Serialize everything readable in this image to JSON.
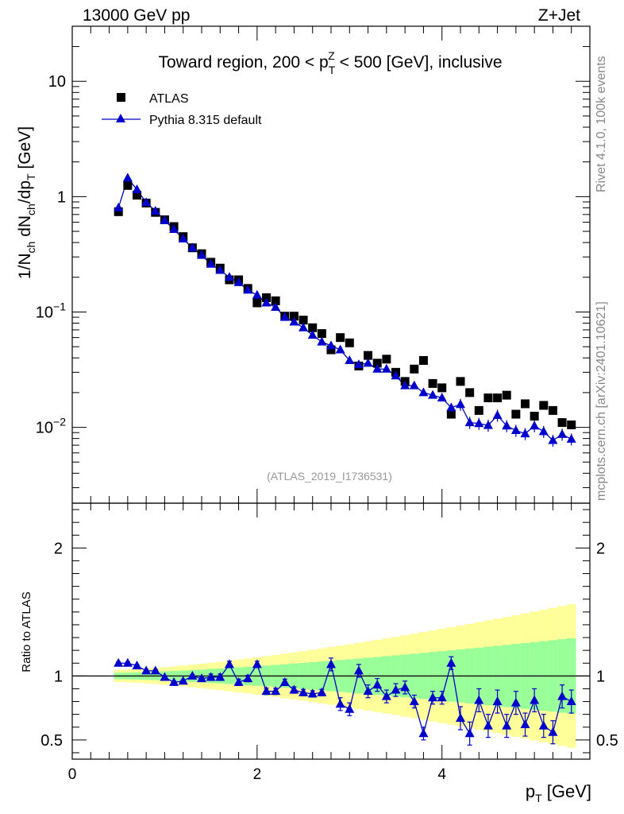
{
  "header": {
    "left": "13000 GeV pp",
    "right": "Z+Jet"
  },
  "side_labels": {
    "rivet": "Rivet 4.1.0,  100k events",
    "mcplots": "mcplots.cern.ch [arXiv:2401.10621]"
  },
  "colors": {
    "atlas": "#000000",
    "pythia": "#0000cc",
    "band_inner": "#99ff99",
    "band_outer": "#ffff99"
  },
  "chart_data": [
    {
      "type": "scatter",
      "title": "Toward region, 200 < p_T^Z < 500 [GeV], inclusive",
      "title_parts": {
        "before": "Toward region, 200 < p",
        "sub": "T",
        "sup": "Z",
        "after": " < 500 [GeV], inclusive"
      },
      "ylabel": "1/N_ch dN_ch/dp_T [GeV]",
      "yscale": "log",
      "ylim": [
        0.0022,
        30
      ],
      "xlim": [
        0,
        5.6
      ],
      "y_ticks": [
        {
          "value": 0.01,
          "label": "10^-2"
        },
        {
          "value": 0.1,
          "label": "10^-1"
        },
        {
          "value": 1,
          "label": "1"
        },
        {
          "value": 10,
          "label": "10"
        }
      ],
      "watermark": "(ATLAS_2019_I1736531)",
      "legend": [
        {
          "name": "ATLAS",
          "marker": "square"
        },
        {
          "name": "Pythia 8.315 default",
          "marker": "triangle"
        }
      ],
      "x": [
        0.5,
        0.6,
        0.7,
        0.8,
        0.9,
        1.0,
        1.1,
        1.2,
        1.3,
        1.4,
        1.5,
        1.6,
        1.7,
        1.8,
        1.9,
        2.0,
        2.1,
        2.2,
        2.3,
        2.4,
        2.5,
        2.6,
        2.7,
        2.8,
        2.9,
        3.0,
        3.1,
        3.2,
        3.3,
        3.4,
        3.5,
        3.6,
        3.7,
        3.8,
        3.9,
        4.0,
        4.1,
        4.2,
        4.3,
        4.4,
        4.5,
        4.6,
        4.7,
        4.8,
        4.9,
        5.0,
        5.1,
        5.2,
        5.3,
        5.4
      ],
      "series": [
        {
          "name": "ATLAS",
          "values": [
            0.74,
            1.25,
            1.03,
            0.88,
            0.73,
            0.63,
            0.55,
            0.45,
            0.36,
            0.32,
            0.27,
            0.24,
            0.19,
            0.19,
            0.16,
            0.12,
            0.133,
            0.125,
            0.092,
            0.092,
            0.085,
            0.073,
            0.065,
            0.047,
            0.06,
            0.054,
            0.034,
            0.042,
            0.036,
            0.039,
            0.03,
            0.025,
            0.032,
            0.038,
            0.024,
            0.022,
            0.013,
            0.025,
            0.02,
            0.014,
            0.018,
            0.018,
            0.019,
            0.013,
            0.016,
            0.0125,
            0.0155,
            0.014,
            0.011,
            0.0105
          ]
        },
        {
          "name": "Pythia 8.315 default",
          "values": [
            0.8,
            1.45,
            1.15,
            0.89,
            0.75,
            0.62,
            0.52,
            0.43,
            0.36,
            0.31,
            0.26,
            0.23,
            0.2,
            0.18,
            0.155,
            0.14,
            0.12,
            0.11,
            0.09,
            0.082,
            0.073,
            0.063,
            0.055,
            0.051,
            0.047,
            0.038,
            0.035,
            0.036,
            0.032,
            0.032,
            0.028,
            0.023,
            0.023,
            0.02,
            0.019,
            0.018,
            0.0148,
            0.0158,
            0.011,
            0.0108,
            0.0104,
            0.0127,
            0.0103,
            0.0094,
            0.0088,
            0.0103,
            0.0092,
            0.0077,
            0.0087,
            0.0079
          ]
        }
      ]
    },
    {
      "type": "scatter",
      "ylabel": "Ratio to ATLAS",
      "xlabel": "p_T [GeV]",
      "xlabel_parts": {
        "before": "p",
        "sub": "T",
        "after": " [GeV]"
      },
      "ylim": [
        0.35,
        2.35
      ],
      "xlim": [
        0,
        5.6
      ],
      "x_ticks": [
        0,
        2,
        4
      ],
      "y_ticks": [
        0.5,
        1,
        2
      ],
      "reference_line": 1,
      "x": [
        0.5,
        0.6,
        0.7,
        0.8,
        0.9,
        1.0,
        1.1,
        1.2,
        1.3,
        1.4,
        1.5,
        1.6,
        1.7,
        1.8,
        1.9,
        2.0,
        2.1,
        2.2,
        2.3,
        2.4,
        2.5,
        2.6,
        2.7,
        2.8,
        2.9,
        3.0,
        3.1,
        3.2,
        3.3,
        3.4,
        3.5,
        3.6,
        3.7,
        3.8,
        3.9,
        4.0,
        4.1,
        4.2,
        4.3,
        4.4,
        4.5,
        4.6,
        4.7,
        4.8,
        4.9,
        5.0,
        5.1,
        5.2,
        5.3,
        5.4
      ],
      "series": [
        {
          "name": "Pythia 8.315 default",
          "values": [
            1.1,
            1.1,
            1.08,
            1.04,
            1.04,
            0.99,
            0.95,
            0.96,
            1.0,
            0.98,
            0.99,
            0.99,
            1.09,
            0.95,
            0.98,
            1.09,
            0.88,
            0.88,
            0.95,
            0.89,
            0.87,
            0.86,
            0.87,
            1.09,
            0.78,
            0.74,
            1.04,
            0.88,
            0.93,
            0.84,
            0.89,
            0.91,
            0.8,
            0.55,
            0.83,
            0.83,
            1.1,
            0.67,
            0.55,
            0.81,
            0.61,
            0.8,
            0.61,
            0.79,
            0.62,
            0.81,
            0.61,
            0.56,
            0.84,
            0.8
          ]
        }
      ]
    }
  ]
}
